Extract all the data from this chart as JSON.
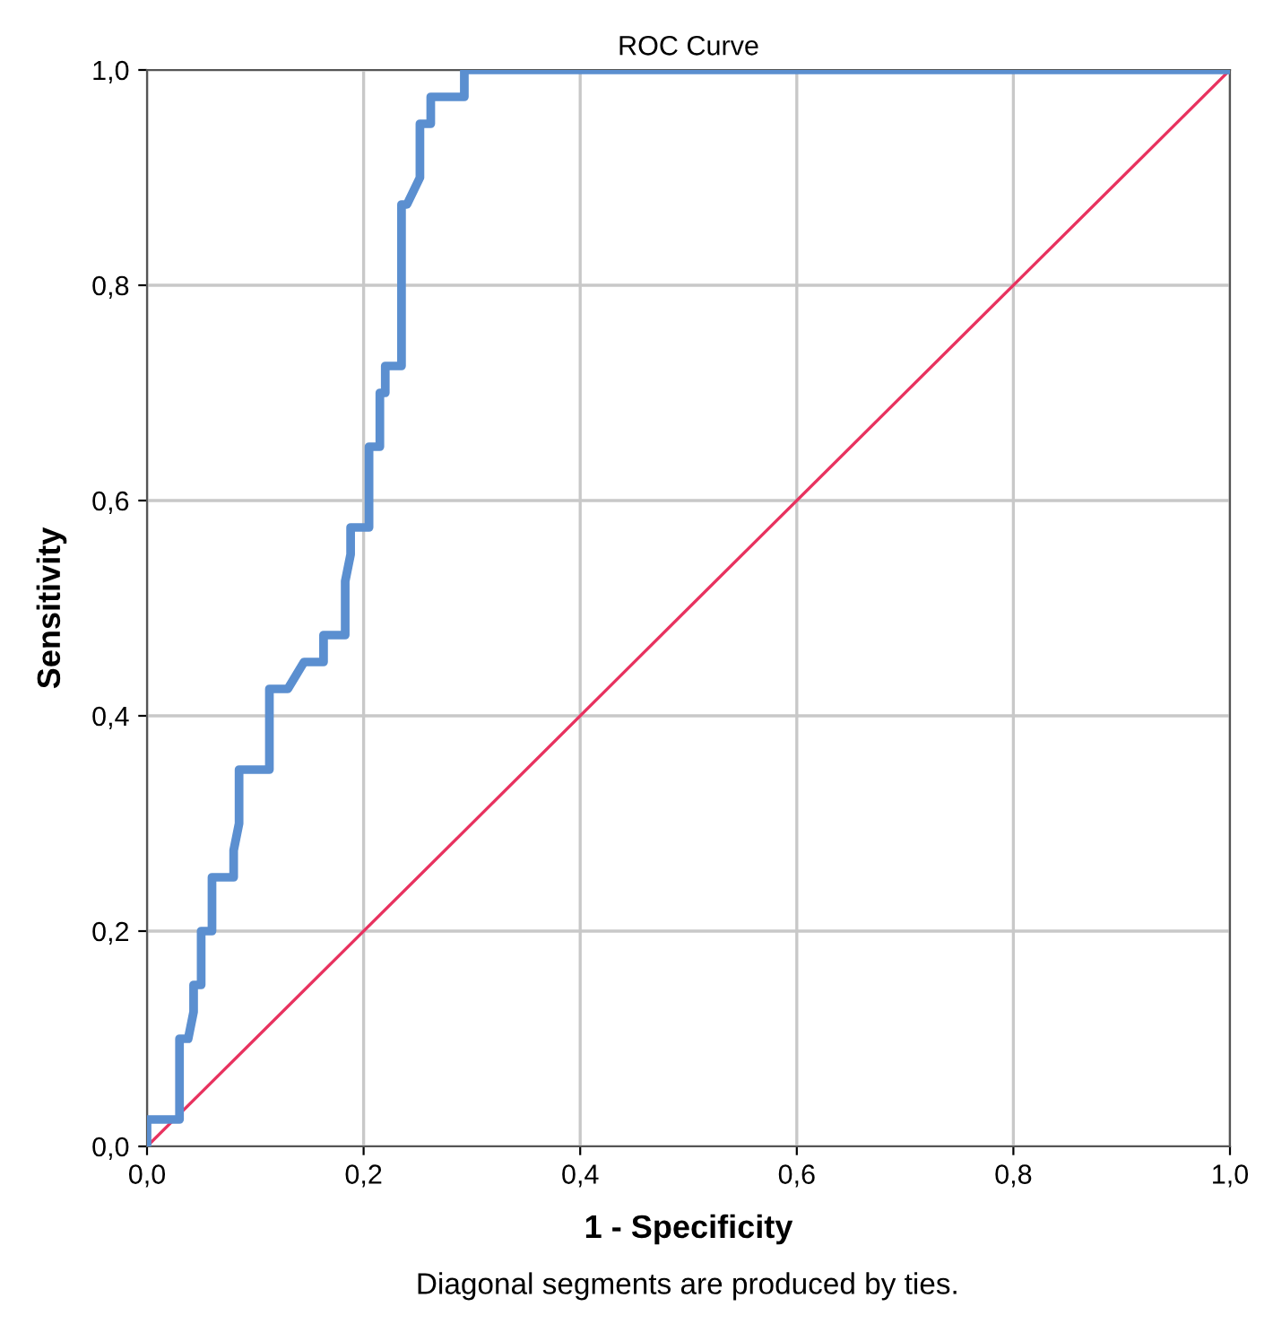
{
  "chart_data": {
    "type": "line",
    "title": "ROC Curve",
    "xlabel": "1 - Specificity",
    "ylabel": "Sensitivity",
    "annotations": [
      "Diagonal segments are produced by ties."
    ],
    "series": [
      {
        "color": "#5b8fd0",
        "x": [
          0,
          0,
          0.03,
          0.03,
          0.038,
          0.043,
          0.043,
          0.05,
          0.05,
          0.06,
          0.06,
          0.08,
          0.08,
          0.085,
          0.085,
          0.113,
          0.113,
          0.13,
          0.145,
          0.163,
          0.163,
          0.183,
          0.183,
          0.188,
          0.188,
          0.205,
          0.205,
          0.215,
          0.215,
          0.22,
          0.22,
          0.235,
          0.235,
          0.24,
          0.252,
          0.252,
          0.262,
          0.262,
          0.293,
          0.293,
          1
        ],
        "values": [
          0,
          0.025,
          0.025,
          0.1,
          0.1,
          0.125,
          0.15,
          0.15,
          0.2,
          0.2,
          0.25,
          0.25,
          0.275,
          0.3,
          0.35,
          0.35,
          0.425,
          0.425,
          0.45,
          0.45,
          0.475,
          0.475,
          0.525,
          0.55,
          0.575,
          0.575,
          0.65,
          0.65,
          0.7,
          0.7,
          0.725,
          0.725,
          0.875,
          0.875,
          0.9,
          0.95,
          0.95,
          0.975,
          0.975,
          1,
          1
        ]
      },
      {
        "color": "#e8325f",
        "x": [
          0,
          1
        ],
        "values": [
          0,
          1
        ]
      }
    ],
    "xlim": [
      0,
      1
    ],
    "ylim": [
      0,
      1
    ],
    "xticks": [
      {
        "value": 0,
        "label": "0,0"
      },
      {
        "value": 0.2,
        "label": "0,2"
      },
      {
        "value": 0.4,
        "label": "0,4"
      },
      {
        "value": 0.6,
        "label": "0,6"
      },
      {
        "value": 0.8,
        "label": "0,8"
      },
      {
        "value": 1,
        "label": "1,0"
      }
    ],
    "yticks": [
      {
        "value": 0,
        "label": "0,0"
      },
      {
        "value": 0.2,
        "label": "0,2"
      },
      {
        "value": 0.4,
        "label": "0,4"
      },
      {
        "value": 0.6,
        "label": "0,6"
      },
      {
        "value": 0.8,
        "label": "0,8"
      },
      {
        "value": 1,
        "label": "1,0"
      }
    ],
    "grid": true,
    "legend": false,
    "marker": "none",
    "line_style": "solid"
  }
}
